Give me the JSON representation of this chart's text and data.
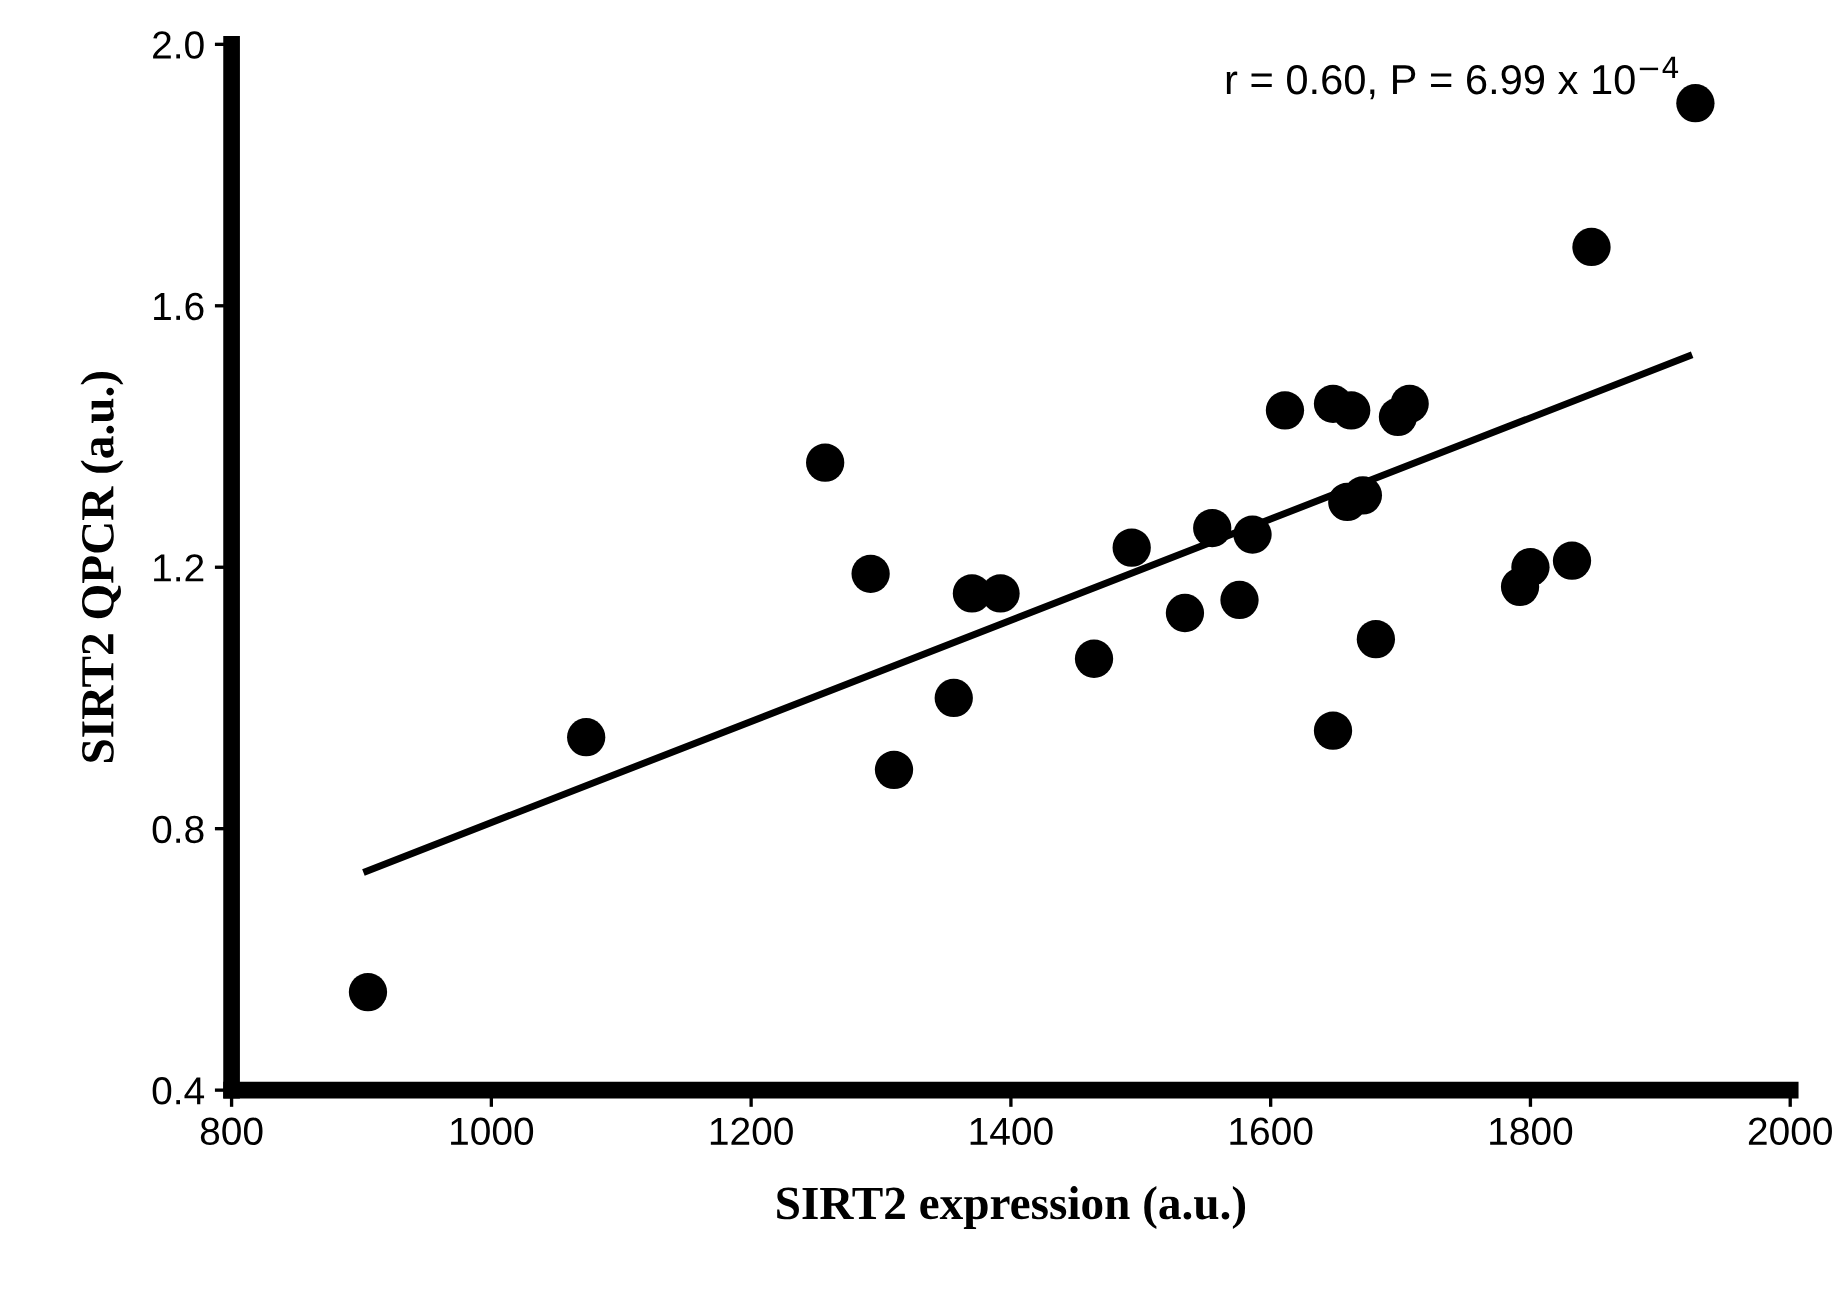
{
  "chart_data": {
    "type": "scatter",
    "xlabel": "SIRT2 expression (a.u.)",
    "ylabel": "SIRT2 QPCR (a.u.)",
    "annotations": [
      "r = 0.60, P = 6.99 x 10$^{−4}$"
    ],
    "xlim": [
      800,
      2000
    ],
    "xticks": [
      800,
      1000,
      1200,
      1400,
      1600,
      1800,
      2000
    ],
    "ylim": [
      0.4,
      2.0
    ],
    "yticks": [
      0.4,
      0.8,
      1.2,
      1.6,
      {
        "value": 2,
        "label": "2.0"
      }
    ],
    "grid": false,
    "legend": false,
    "marker": "circle",
    "series": [
      {
        "color": "#000000",
        "x": [
          905,
          1073,
          1257,
          1292,
          1310,
          1356,
          1370,
          1392,
          1464,
          1493,
          1534,
          1555,
          1576,
          1586,
          1611,
          1648,
          1662,
          1659,
          1671,
          1648,
          1681,
          1698,
          1707,
          1792,
          1800,
          1832,
          1847,
          1927
        ],
        "values": [
          0.55,
          0.94,
          1.36,
          1.19,
          0.89,
          1.0,
          1.16,
          1.16,
          1.06,
          1.23,
          1.13,
          1.26,
          1.15,
          1.25,
          1.44,
          1.45,
          1.44,
          1.3,
          1.31,
          0.95,
          1.09,
          1.43,
          1.45,
          1.17,
          1.2,
          1.21,
          1.69,
          1.91
        ]
      },
      {
        "type": "line",
        "color": "#000000",
        "x": [
          904,
          1922
        ],
        "values": [
          0.735,
          1.523
        ],
        "line_style": "solid",
        "marker": "none"
      }
    ]
  }
}
